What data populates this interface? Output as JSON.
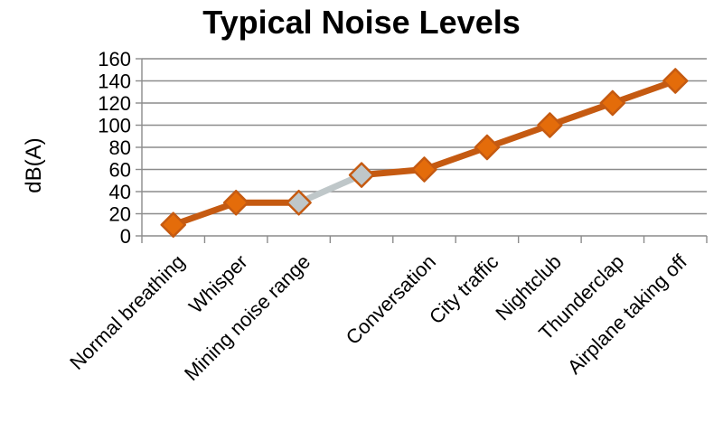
{
  "chart_data": {
    "type": "line",
    "title": "Typical Noise Levels",
    "ylabel": "dB(A)",
    "xlabel": "",
    "ylim": [
      0,
      160
    ],
    "yticks": [
      0,
      20,
      40,
      60,
      80,
      100,
      120,
      140,
      160
    ],
    "grid": true,
    "legend": "none",
    "categories": [
      "Normal breathing",
      "Whisper",
      "Mining noise range",
      "",
      "Conversation",
      "City traffic",
      "Nightclub",
      "Thunderclap",
      "Airplane taking off"
    ],
    "values": [
      10,
      30,
      30,
      55,
      60,
      80,
      100,
      120,
      140
    ],
    "highlight_segment": [
      2,
      3
    ],
    "colors": {
      "line": "#c55a11",
      "marker_fill": "#e46c0a",
      "highlight": "#bfc7c9",
      "grid": "#8c8c8c"
    }
  }
}
